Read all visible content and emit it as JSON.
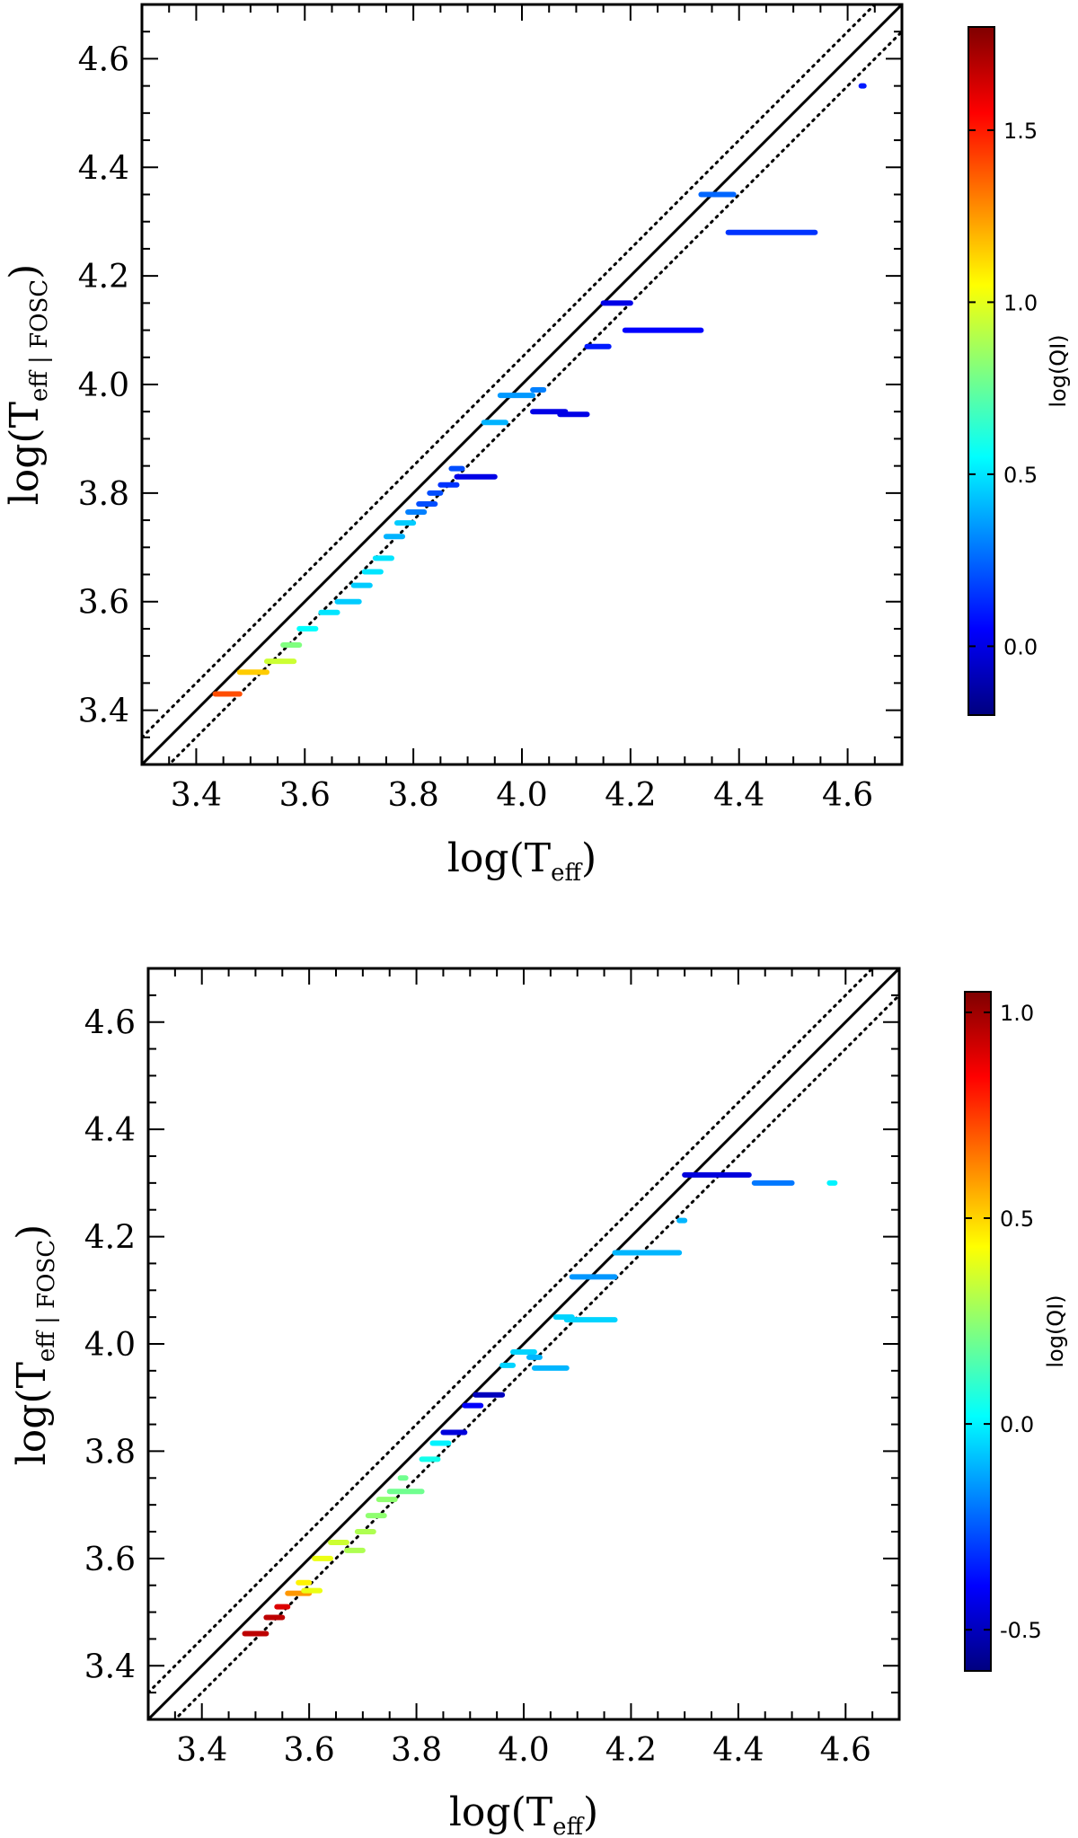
{
  "chart_data": [
    {
      "type": "scatter",
      "xlabel_main": "log(T",
      "xlabel_sub": "eff",
      "xlabel_end": ")",
      "ylabel_main": "log(T",
      "ylabel_sub": "eff | FOSC",
      "ylabel_end": ")",
      "xlim": [
        3.3,
        4.7
      ],
      "ylim": [
        3.3,
        4.7
      ],
      "xticks": [
        "3.4",
        "3.6",
        "3.8",
        "4.0",
        "4.2",
        "4.4",
        "4.6"
      ],
      "yticks": [
        "3.4",
        "3.6",
        "3.8",
        "4.0",
        "4.2",
        "4.4",
        "4.6"
      ],
      "reference_lines": {
        "identity": "solid",
        "offsets": [
          0.05,
          -0.05
        ],
        "offset_style": "dotted"
      },
      "colorbar": {
        "label": "log(QI)",
        "range": [
          -0.2,
          1.8
        ],
        "ticks": [
          "0.0",
          "0.5",
          "1.0",
          "1.5"
        ],
        "colormap": "jet"
      },
      "segments": [
        {
          "x0": 3.435,
          "x1": 3.48,
          "y": 3.43,
          "c": 1.4
        },
        {
          "x0": 3.48,
          "x1": 3.53,
          "y": 3.47,
          "c": 1.15
        },
        {
          "x0": 3.53,
          "x1": 3.58,
          "y": 3.49,
          "c": 0.95
        },
        {
          "x0": 3.56,
          "x1": 3.59,
          "y": 3.52,
          "c": 0.8
        },
        {
          "x0": 3.59,
          "x1": 3.62,
          "y": 3.55,
          "c": 0.55
        },
        {
          "x0": 3.63,
          "x1": 3.66,
          "y": 3.58,
          "c": 0.5
        },
        {
          "x0": 3.66,
          "x1": 3.7,
          "y": 3.6,
          "c": 0.45
        },
        {
          "x0": 3.69,
          "x1": 3.72,
          "y": 3.63,
          "c": 0.45
        },
        {
          "x0": 3.71,
          "x1": 3.74,
          "y": 3.655,
          "c": 0.5
        },
        {
          "x0": 3.73,
          "x1": 3.76,
          "y": 3.68,
          "c": 0.5
        },
        {
          "x0": 3.75,
          "x1": 3.78,
          "y": 3.72,
          "c": 0.4
        },
        {
          "x0": 3.77,
          "x1": 3.8,
          "y": 3.745,
          "c": 0.45
        },
        {
          "x0": 3.79,
          "x1": 3.82,
          "y": 3.765,
          "c": 0.3
        },
        {
          "x0": 3.81,
          "x1": 3.84,
          "y": 3.78,
          "c": 0.2
        },
        {
          "x0": 3.83,
          "x1": 3.85,
          "y": 3.8,
          "c": 0.2
        },
        {
          "x0": 3.85,
          "x1": 3.88,
          "y": 3.815,
          "c": 0.15
        },
        {
          "x0": 3.87,
          "x1": 3.89,
          "y": 3.845,
          "c": 0.2
        },
        {
          "x0": 3.88,
          "x1": 3.95,
          "y": 3.83,
          "c": 0.0
        },
        {
          "x0": 3.93,
          "x1": 3.97,
          "y": 3.93,
          "c": 0.4
        },
        {
          "x0": 3.96,
          "x1": 4.02,
          "y": 3.98,
          "c": 0.35
        },
        {
          "x0": 4.02,
          "x1": 4.04,
          "y": 3.99,
          "c": 0.3
        },
        {
          "x0": 4.02,
          "x1": 4.08,
          "y": 3.95,
          "c": 0.0
        },
        {
          "x0": 4.07,
          "x1": 4.12,
          "y": 3.945,
          "c": 0.0
        },
        {
          "x0": 4.12,
          "x1": 4.16,
          "y": 4.07,
          "c": 0.1
        },
        {
          "x0": 4.15,
          "x1": 4.2,
          "y": 4.15,
          "c": 0.0
        },
        {
          "x0": 4.19,
          "x1": 4.33,
          "y": 4.1,
          "c": 0.05
        },
        {
          "x0": 4.33,
          "x1": 4.39,
          "y": 4.35,
          "c": 0.25
        },
        {
          "x0": 4.38,
          "x1": 4.54,
          "y": 4.28,
          "c": 0.15
        },
        {
          "x0": 4.625,
          "x1": 4.63,
          "y": 4.55,
          "c": 0.1
        }
      ]
    },
    {
      "type": "scatter",
      "xlabel_main": "log(T",
      "xlabel_sub": "eff",
      "xlabel_end": ")",
      "ylabel_main": "log(T",
      "ylabel_sub": "eff | FOSC",
      "ylabel_end": ")",
      "xlim": [
        3.3,
        4.7
      ],
      "ylim": [
        3.3,
        4.7
      ],
      "xticks": [
        "3.4",
        "3.6",
        "3.8",
        "4.0",
        "4.2",
        "4.4",
        "4.6"
      ],
      "yticks": [
        "3.4",
        "3.6",
        "3.8",
        "4.0",
        "4.2",
        "4.4",
        "4.6"
      ],
      "reference_lines": {
        "identity": "solid",
        "offsets": [
          0.05,
          -0.05
        ],
        "offset_style": "dotted"
      },
      "colorbar": {
        "label": "log(QI)",
        "range": [
          -0.6,
          1.05
        ],
        "ticks": [
          "-0.5",
          "0.0",
          "0.5",
          "1.0"
        ],
        "colormap": "jet"
      },
      "segments": [
        {
          "x0": 3.48,
          "x1": 3.52,
          "y": 3.46,
          "c": 0.95
        },
        {
          "x0": 3.52,
          "x1": 3.55,
          "y": 3.49,
          "c": 0.95
        },
        {
          "x0": 3.54,
          "x1": 3.56,
          "y": 3.51,
          "c": 0.9
        },
        {
          "x0": 3.56,
          "x1": 3.6,
          "y": 3.535,
          "c": 0.6
        },
        {
          "x0": 3.59,
          "x1": 3.62,
          "y": 3.54,
          "c": 0.4
        },
        {
          "x0": 3.58,
          "x1": 3.6,
          "y": 3.555,
          "c": 0.45
        },
        {
          "x0": 3.61,
          "x1": 3.64,
          "y": 3.6,
          "c": 0.4
        },
        {
          "x0": 3.64,
          "x1": 3.67,
          "y": 3.63,
          "c": 0.35
        },
        {
          "x0": 3.67,
          "x1": 3.7,
          "y": 3.615,
          "c": 0.3
        },
        {
          "x0": 3.69,
          "x1": 3.72,
          "y": 3.65,
          "c": 0.3
        },
        {
          "x0": 3.71,
          "x1": 3.74,
          "y": 3.68,
          "c": 0.25
        },
        {
          "x0": 3.73,
          "x1": 3.76,
          "y": 3.71,
          "c": 0.25
        },
        {
          "x0": 3.75,
          "x1": 3.81,
          "y": 3.725,
          "c": 0.2
        },
        {
          "x0": 3.77,
          "x1": 3.78,
          "y": 3.75,
          "c": 0.2
        },
        {
          "x0": 3.81,
          "x1": 3.84,
          "y": 3.785,
          "c": 0.05
        },
        {
          "x0": 3.83,
          "x1": 3.86,
          "y": 3.815,
          "c": 0.0
        },
        {
          "x0": 3.85,
          "x1": 3.89,
          "y": 3.835,
          "c": -0.45
        },
        {
          "x0": 3.89,
          "x1": 3.92,
          "y": 3.885,
          "c": -0.4
        },
        {
          "x0": 3.91,
          "x1": 3.96,
          "y": 3.905,
          "c": -0.5
        },
        {
          "x0": 3.96,
          "x1": 3.98,
          "y": 3.96,
          "c": -0.05
        },
        {
          "x0": 3.98,
          "x1": 4.02,
          "y": 3.985,
          "c": -0.05
        },
        {
          "x0": 4.01,
          "x1": 4.03,
          "y": 3.975,
          "c": -0.1
        },
        {
          "x0": 4.02,
          "x1": 4.08,
          "y": 3.955,
          "c": -0.1
        },
        {
          "x0": 4.06,
          "x1": 4.09,
          "y": 4.05,
          "c": -0.05
        },
        {
          "x0": 4.08,
          "x1": 4.17,
          "y": 4.045,
          "c": -0.05
        },
        {
          "x0": 4.09,
          "x1": 4.17,
          "y": 4.125,
          "c": -0.15
        },
        {
          "x0": 4.17,
          "x1": 4.29,
          "y": 4.17,
          "c": -0.1
        },
        {
          "x0": 4.29,
          "x1": 4.3,
          "y": 4.23,
          "c": -0.1
        },
        {
          "x0": 4.3,
          "x1": 4.42,
          "y": 4.315,
          "c": -0.45
        },
        {
          "x0": 4.43,
          "x1": 4.5,
          "y": 4.3,
          "c": -0.2
        },
        {
          "x0": 4.57,
          "x1": 4.58,
          "y": 4.3,
          "c": 0.0
        }
      ]
    }
  ]
}
